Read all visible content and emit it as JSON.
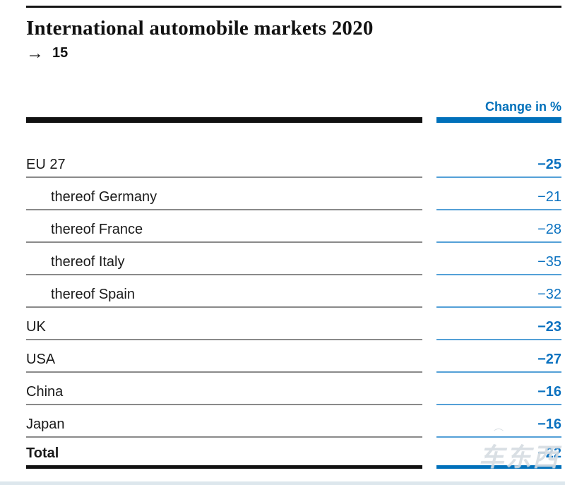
{
  "page": {
    "title": "International automobile markets 2020",
    "page_ref": {
      "arrow": "→",
      "number": "15"
    }
  },
  "table": {
    "value_header": "Change in %",
    "rows": [
      {
        "label": "EU 27",
        "value": "−25"
      },
      {
        "label": "thereof Germany",
        "value": "−21"
      },
      {
        "label": "thereof France",
        "value": "−28"
      },
      {
        "label": "thereof Italy",
        "value": "−35"
      },
      {
        "label": "thereof Spain",
        "value": "−32"
      },
      {
        "label": "UK",
        "value": "−23"
      },
      {
        "label": "USA",
        "value": "−27"
      },
      {
        "label": "China",
        "value": "−16"
      },
      {
        "label": "Japan",
        "value": "−16"
      },
      {
        "label": "Total",
        "value": "−22"
      }
    ]
  },
  "chart_data": {
    "type": "table",
    "title": "International automobile markets 2020",
    "value_column": "Change in %",
    "categories": [
      "EU 27",
      "thereof Germany",
      "thereof France",
      "thereof Italy",
      "thereof Spain",
      "UK",
      "USA",
      "China",
      "Japan",
      "Total"
    ],
    "values": [
      -25,
      -21,
      -28,
      -35,
      -32,
      -23,
      -27,
      -16,
      -16,
      -22
    ]
  },
  "watermark": {
    "text": "车东西",
    "car_icon": "⌒"
  },
  "colors": {
    "accent_blue": "#0070ba",
    "row_line_blue": "#54a0d7",
    "row_line_gray": "#8a8a8a",
    "text_black": "#1a1a1a",
    "bottom_strip": "#dde7ed"
  }
}
